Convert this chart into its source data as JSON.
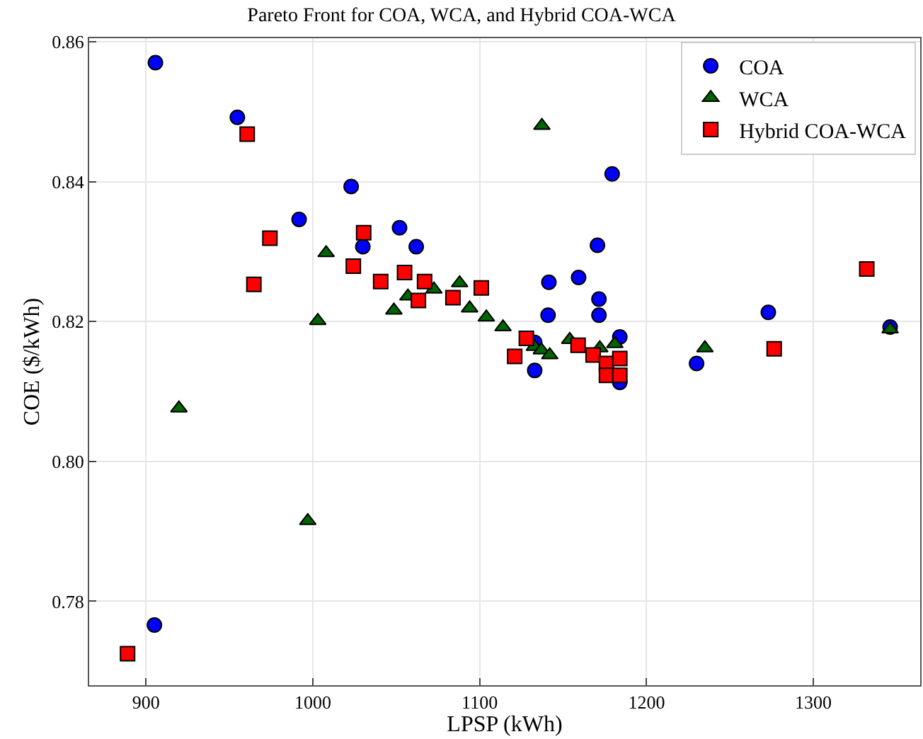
{
  "chart_data": {
    "type": "scatter",
    "title": "Pareto Front for COA, WCA, and Hybrid COA-WCA",
    "xlabel": "LPSP (kWh)",
    "ylabel": "COE ($/kWh)",
    "xlim": [
      866,
      1364
    ],
    "ylim": [
      0.768,
      0.8605
    ],
    "xticks": [
      900,
      1000,
      1100,
      1200,
      1300
    ],
    "yticks": [
      {
        "value": 0.78,
        "label": "0.78"
      },
      {
        "value": 0.8,
        "label": "0.80"
      },
      {
        "value": 0.82,
        "label": "0.82"
      },
      {
        "value": 0.84,
        "label": "0.84"
      },
      {
        "value": 0.86,
        "label": "0.86"
      }
    ],
    "grid": true,
    "legend": "top right",
    "series": [
      {
        "name": "COA",
        "color": "#0000ff",
        "marker": "circle",
        "x": [
          905.7,
          954.8,
          1023,
          991.8,
          1052,
          1030,
          1062,
          1179.4,
          1170.6,
          1141.5,
          1159.3,
          1171.5,
          1141,
          1171.5,
          1273,
          1346,
          1184,
          1133,
          1133,
          1230,
          1184,
          905.1
        ],
        "values": [
          0.857,
          0.8492,
          0.8393,
          0.8346,
          0.8334,
          0.8307,
          0.8307,
          0.8411,
          0.8309,
          0.8256,
          0.8263,
          0.8232,
          0.8209,
          0.8209,
          0.8213,
          0.8192,
          0.8178,
          0.817,
          0.813,
          0.814,
          0.8113,
          0.7766
        ]
      },
      {
        "name": "WCA",
        "color": "#006400",
        "marker": "triangle",
        "x": [
          1008,
          1003,
          1048.6,
          1057,
          1072.6,
          1088,
          1094,
          1104,
          1114,
          1137.3,
          1132.8,
          1137,
          1142,
          1154,
          1172,
          1181,
          1235,
          1346,
          919.8,
          997
        ],
        "values": [
          0.8298,
          0.8201,
          0.8216,
          0.8236,
          0.8246,
          0.8255,
          0.8219,
          0.8206,
          0.8192,
          0.848,
          0.8164,
          0.8159,
          0.8152,
          0.8174,
          0.8162,
          0.8168,
          0.8162,
          0.8189,
          0.8076,
          0.7915
        ]
      },
      {
        "name": "Hybrid COA-WCA",
        "color": "#ff0000",
        "marker": "square",
        "x": [
          960.7,
          974.3,
          964.7,
          1030.5,
          1024.3,
          1040.7,
          1055,
          1067,
          1063.3,
          1084,
          1101,
          1128,
          1121,
          1159,
          1168,
          1176,
          1176,
          1184,
          1184,
          1276.5,
          1332,
          889
        ],
        "values": [
          0.8468,
          0.8319,
          0.8253,
          0.8327,
          0.8279,
          0.8257,
          0.827,
          0.8257,
          0.823,
          0.8234,
          0.8248,
          0.8176,
          0.815,
          0.8166,
          0.8152,
          0.814,
          0.8123,
          0.8147,
          0.8123,
          0.8161,
          0.8275,
          0.7725
        ]
      }
    ]
  }
}
